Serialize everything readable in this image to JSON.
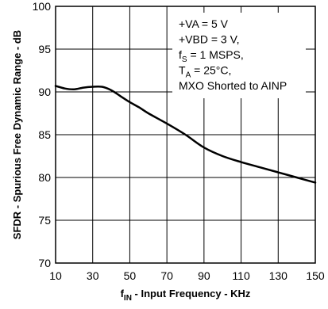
{
  "chart_data": {
    "type": "line",
    "xlabel": {
      "main": "f",
      "sub": "IN",
      "rest": " - Input Frequency - KHz"
    },
    "ylabel": "SFDR - Spurious Free Dynamic Range - dB",
    "xlim": [
      10,
      150
    ],
    "ylim": [
      70,
      100
    ],
    "grid": true,
    "x_ticks": [
      10,
      30,
      50,
      70,
      90,
      110,
      130,
      150
    ],
    "y_ticks": [
      70,
      75,
      80,
      85,
      90,
      95,
      100
    ],
    "annotations": [
      {
        "main": "+VA = 5 V"
      },
      {
        "main": "+VBD = 3 V,"
      },
      {
        "main": "f",
        "sub": "S",
        "rest": " = 1 MSPS,"
      },
      {
        "main": "T",
        "sub": "A",
        "rest": " = 25°C,"
      },
      {
        "main": "MXO Shorted to AINP"
      }
    ],
    "series": [
      {
        "color": "#000000",
        "x": [
          10,
          15,
          20,
          25,
          30,
          35,
          40,
          45,
          50,
          55,
          60,
          70,
          80,
          90,
          100,
          110,
          120,
          130,
          140,
          150
        ],
        "y": [
          90.7,
          90.4,
          90.3,
          90.5,
          90.6,
          90.6,
          90.2,
          89.5,
          88.8,
          88.2,
          87.5,
          86.3,
          85.0,
          83.5,
          82.5,
          81.8,
          81.2,
          80.6,
          80.0,
          79.4
        ]
      }
    ]
  }
}
